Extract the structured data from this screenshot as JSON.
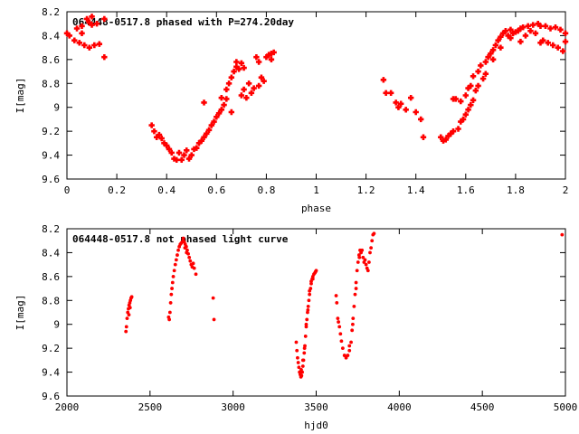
{
  "chart_data": [
    {
      "type": "scatter",
      "title": "064448-0517.8 phased with P=274.20day",
      "xlabel": "phase",
      "ylabel": "I[mag]",
      "xlim": [
        0,
        2
      ],
      "ylim": [
        9.6,
        8.2
      ],
      "y_inverted": true,
      "grid": false,
      "marker_color": "#ff0000",
      "marker": "plus-bold",
      "x_ticks": [
        0,
        0.2,
        0.4,
        0.6,
        0.8,
        1,
        1.2,
        1.4,
        1.6,
        1.8,
        2
      ],
      "x_tick_labels": [
        "0",
        "0.2",
        "0.4",
        "0.6",
        "0.8",
        "1",
        "1.2",
        "1.4",
        "1.6",
        "1.8",
        "2"
      ],
      "y_ticks": [
        8.2,
        8.4,
        8.6,
        8.8,
        9,
        9.2,
        9.4,
        9.6
      ],
      "y_tick_labels": [
        "8.2",
        "8.4",
        "8.6",
        "8.8",
        "9",
        "9.2",
        "9.4",
        "9.6"
      ],
      "points": [
        [
          0.0,
          8.38
        ],
        [
          0.01,
          8.4
        ],
        [
          0.03,
          8.44
        ],
        [
          0.04,
          8.34
        ],
        [
          0.05,
          8.46
        ],
        [
          0.06,
          8.32
        ],
        [
          0.06,
          8.38
        ],
        [
          0.07,
          8.48
        ],
        [
          0.08,
          8.26
        ],
        [
          0.09,
          8.29
        ],
        [
          0.09,
          8.5
        ],
        [
          0.1,
          8.24
        ],
        [
          0.1,
          8.31
        ],
        [
          0.11,
          8.48
        ],
        [
          0.12,
          8.3
        ],
        [
          0.13,
          8.47
        ],
        [
          0.15,
          8.26
        ],
        [
          0.15,
          8.58
        ],
        [
          0.34,
          9.15
        ],
        [
          0.35,
          9.2
        ],
        [
          0.36,
          9.25
        ],
        [
          0.37,
          9.23
        ],
        [
          0.38,
          9.26
        ],
        [
          0.39,
          9.3
        ],
        [
          0.4,
          9.32
        ],
        [
          0.41,
          9.35
        ],
        [
          0.42,
          9.38
        ],
        [
          0.43,
          9.43
        ],
        [
          0.44,
          9.44
        ],
        [
          0.45,
          9.38
        ],
        [
          0.46,
          9.44
        ],
        [
          0.47,
          9.4
        ],
        [
          0.48,
          9.36
        ],
        [
          0.49,
          9.43
        ],
        [
          0.5,
          9.4
        ],
        [
          0.51,
          9.35
        ],
        [
          0.52,
          9.34
        ],
        [
          0.53,
          9.3
        ],
        [
          0.54,
          9.28
        ],
        [
          0.55,
          8.96
        ],
        [
          0.55,
          9.25
        ],
        [
          0.56,
          9.22
        ],
        [
          0.57,
          9.19
        ],
        [
          0.58,
          9.15
        ],
        [
          0.59,
          9.12
        ],
        [
          0.6,
          9.08
        ],
        [
          0.61,
          9.05
        ],
        [
          0.62,
          9.02
        ],
        [
          0.62,
          8.92
        ],
        [
          0.63,
          8.98
        ],
        [
          0.64,
          8.85
        ],
        [
          0.64,
          8.93
        ],
        [
          0.65,
          8.8
        ],
        [
          0.66,
          8.75
        ],
        [
          0.66,
          9.04
        ],
        [
          0.67,
          8.7
        ],
        [
          0.68,
          8.66
        ],
        [
          0.68,
          8.62
        ],
        [
          0.69,
          8.68
        ],
        [
          0.7,
          8.63
        ],
        [
          0.7,
          8.9
        ],
        [
          0.71,
          8.67
        ],
        [
          0.71,
          8.85
        ],
        [
          0.72,
          8.92
        ],
        [
          0.73,
          8.8
        ],
        [
          0.74,
          8.88
        ],
        [
          0.75,
          8.84
        ],
        [
          0.76,
          8.58
        ],
        [
          0.77,
          8.82
        ],
        [
          0.77,
          8.62
        ],
        [
          0.78,
          8.75
        ],
        [
          0.79,
          8.78
        ],
        [
          0.8,
          8.58
        ],
        [
          0.81,
          8.56
        ],
        [
          0.82,
          8.55
        ],
        [
          0.82,
          8.6
        ],
        [
          0.83,
          8.54
        ],
        [
          1.27,
          8.77
        ],
        [
          1.28,
          8.88
        ],
        [
          1.3,
          8.88
        ],
        [
          1.32,
          8.96
        ],
        [
          1.33,
          9.0
        ],
        [
          1.34,
          8.97
        ],
        [
          1.36,
          9.02
        ],
        [
          1.38,
          8.92
        ],
        [
          1.4,
          9.04
        ],
        [
          1.42,
          9.1
        ],
        [
          1.43,
          9.25
        ],
        [
          1.5,
          9.25
        ],
        [
          1.51,
          9.28
        ],
        [
          1.52,
          9.27
        ],
        [
          1.53,
          9.24
        ],
        [
          1.54,
          9.22
        ],
        [
          1.55,
          8.93
        ],
        [
          1.55,
          9.2
        ],
        [
          1.56,
          8.93
        ],
        [
          1.57,
          9.18
        ],
        [
          1.58,
          9.12
        ],
        [
          1.58,
          8.95
        ],
        [
          1.59,
          9.1
        ],
        [
          1.6,
          8.9
        ],
        [
          1.6,
          9.06
        ],
        [
          1.61,
          8.84
        ],
        [
          1.61,
          9.02
        ],
        [
          1.62,
          8.82
        ],
        [
          1.62,
          8.98
        ],
        [
          1.63,
          8.74
        ],
        [
          1.63,
          8.94
        ],
        [
          1.64,
          8.86
        ],
        [
          1.65,
          8.7
        ],
        [
          1.65,
          8.82
        ],
        [
          1.66,
          8.65
        ],
        [
          1.67,
          8.76
        ],
        [
          1.68,
          8.62
        ],
        [
          1.68,
          8.72
        ],
        [
          1.69,
          8.58
        ],
        [
          1.7,
          8.55
        ],
        [
          1.71,
          8.6
        ],
        [
          1.71,
          8.52
        ],
        [
          1.72,
          8.48
        ],
        [
          1.73,
          8.44
        ],
        [
          1.74,
          8.5
        ],
        [
          1.74,
          8.41
        ],
        [
          1.75,
          8.38
        ],
        [
          1.76,
          8.36
        ],
        [
          1.77,
          8.4
        ],
        [
          1.78,
          8.35
        ],
        [
          1.78,
          8.42
        ],
        [
          1.79,
          8.38
        ],
        [
          1.8,
          8.37
        ],
        [
          1.81,
          8.36
        ],
        [
          1.82,
          8.34
        ],
        [
          1.82,
          8.45
        ],
        [
          1.83,
          8.33
        ],
        [
          1.84,
          8.4
        ],
        [
          1.85,
          8.32
        ],
        [
          1.86,
          8.36
        ],
        [
          1.87,
          8.31
        ],
        [
          1.88,
          8.38
        ],
        [
          1.89,
          8.3
        ],
        [
          1.9,
          8.46
        ],
        [
          1.9,
          8.32
        ],
        [
          1.91,
          8.44
        ],
        [
          1.92,
          8.32
        ],
        [
          1.93,
          8.46
        ],
        [
          1.94,
          8.34
        ],
        [
          1.95,
          8.48
        ],
        [
          1.96,
          8.33
        ],
        [
          1.97,
          8.5
        ],
        [
          1.98,
          8.35
        ],
        [
          1.99,
          8.53
        ],
        [
          2.0,
          8.38
        ],
        [
          2.0,
          8.45
        ]
      ]
    },
    {
      "type": "scatter",
      "title": "064448-0517.8 not phased light curve",
      "xlabel": "hjd0",
      "ylabel": "I[mag]",
      "xlim": [
        2000,
        5000
      ],
      "ylim": [
        9.6,
        8.2
      ],
      "y_inverted": true,
      "grid": false,
      "marker_color": "#ff0000",
      "marker": "dot",
      "x_ticks": [
        2000,
        2500,
        3000,
        3500,
        4000,
        4500,
        5000
      ],
      "x_tick_labels": [
        "2000",
        "2500",
        "3000",
        "3500",
        "4000",
        "4500",
        "5000"
      ],
      "y_ticks": [
        8.2,
        8.4,
        8.6,
        8.8,
        9,
        9.2,
        9.4,
        9.6
      ],
      "y_tick_labels": [
        "8.2",
        "8.4",
        "8.6",
        "8.8",
        "9",
        "9.2",
        "9.4",
        "9.6"
      ],
      "points": [
        [
          2355,
          9.06
        ],
        [
          2358,
          9.02
        ],
        [
          2362,
          8.95
        ],
        [
          2366,
          8.9
        ],
        [
          2370,
          8.87
        ],
        [
          2374,
          8.84
        ],
        [
          2378,
          8.82
        ],
        [
          2382,
          8.8
        ],
        [
          2386,
          8.78
        ],
        [
          2390,
          8.77
        ],
        [
          2373,
          8.92
        ],
        [
          2380,
          8.86
        ],
        [
          2612,
          8.94
        ],
        [
          2616,
          8.96
        ],
        [
          2620,
          8.9
        ],
        [
          2624,
          8.82
        ],
        [
          2628,
          8.75
        ],
        [
          2632,
          8.7
        ],
        [
          2636,
          8.65
        ],
        [
          2640,
          8.6
        ],
        [
          2646,
          8.55
        ],
        [
          2652,
          8.5
        ],
        [
          2658,
          8.46
        ],
        [
          2664,
          8.42
        ],
        [
          2670,
          8.38
        ],
        [
          2676,
          8.35
        ],
        [
          2682,
          8.33
        ],
        [
          2688,
          8.32
        ],
        [
          2694,
          8.31
        ],
        [
          2700,
          8.3
        ],
        [
          2706,
          8.31
        ],
        [
          2712,
          8.33
        ],
        [
          2718,
          8.35
        ],
        [
          2724,
          8.38
        ],
        [
          2730,
          8.41
        ],
        [
          2736,
          8.44
        ],
        [
          2742,
          8.47
        ],
        [
          2748,
          8.5
        ],
        [
          2754,
          8.52
        ],
        [
          2760,
          8.49
        ],
        [
          2766,
          8.53
        ],
        [
          2776,
          8.58
        ],
        [
          2880,
          8.78
        ],
        [
          2885,
          8.96
        ],
        [
          2700,
          8.28
        ],
        [
          2710,
          8.36
        ],
        [
          2720,
          8.4
        ],
        [
          3380,
          9.15
        ],
        [
          3384,
          9.22
        ],
        [
          3388,
          9.28
        ],
        [
          3392,
          9.32
        ],
        [
          3396,
          9.36
        ],
        [
          3400,
          9.4
        ],
        [
          3404,
          9.42
        ],
        [
          3408,
          9.44
        ],
        [
          3412,
          9.43
        ],
        [
          3416,
          9.4
        ],
        [
          3420,
          9.35
        ],
        [
          3424,
          9.3
        ],
        [
          3428,
          9.24
        ],
        [
          3432,
          9.18
        ],
        [
          3436,
          9.1
        ],
        [
          3440,
          9.02
        ],
        [
          3444,
          8.96
        ],
        [
          3448,
          8.9
        ],
        [
          3452,
          8.85
        ],
        [
          3456,
          8.8
        ],
        [
          3460,
          8.75
        ],
        [
          3466,
          8.7
        ],
        [
          3470,
          8.66
        ],
        [
          3476,
          8.62
        ],
        [
          3480,
          8.6
        ],
        [
          3486,
          8.58
        ],
        [
          3492,
          8.57
        ],
        [
          3496,
          8.56
        ],
        [
          3500,
          8.55
        ],
        [
          3410,
          9.38
        ],
        [
          3420,
          9.3
        ],
        [
          3430,
          9.2
        ],
        [
          3440,
          9.0
        ],
        [
          3450,
          8.88
        ],
        [
          3460,
          8.72
        ],
        [
          3470,
          8.64
        ],
        [
          3480,
          8.62
        ],
        [
          3620,
          8.76
        ],
        [
          3624,
          8.82
        ],
        [
          3630,
          8.95
        ],
        [
          3634,
          8.98
        ],
        [
          3640,
          9.02
        ],
        [
          3646,
          9.08
        ],
        [
          3652,
          9.14
        ],
        [
          3660,
          9.2
        ],
        [
          3670,
          9.26
        ],
        [
          3680,
          9.28
        ],
        [
          3690,
          9.26
        ],
        [
          3700,
          9.22
        ],
        [
          3710,
          9.15
        ],
        [
          3716,
          9.05
        ],
        [
          3722,
          8.95
        ],
        [
          3728,
          8.85
        ],
        [
          3734,
          8.75
        ],
        [
          3740,
          8.65
        ],
        [
          3746,
          8.55
        ],
        [
          3752,
          8.48
        ],
        [
          3758,
          8.42
        ],
        [
          3764,
          8.38
        ],
        [
          3770,
          8.4
        ],
        [
          3776,
          8.38
        ],
        [
          3782,
          8.44
        ],
        [
          3788,
          8.48
        ],
        [
          3794,
          8.46
        ],
        [
          3800,
          8.5
        ],
        [
          3806,
          8.53
        ],
        [
          3812,
          8.55
        ],
        [
          3818,
          8.48
        ],
        [
          3824,
          8.4
        ],
        [
          3830,
          8.36
        ],
        [
          3836,
          8.3
        ],
        [
          3842,
          8.25
        ],
        [
          3848,
          8.24
        ],
        [
          3700,
          9.18
        ],
        [
          3720,
          9.0
        ],
        [
          3740,
          8.7
        ],
        [
          3760,
          8.44
        ],
        [
          4980,
          8.25
        ]
      ]
    }
  ]
}
